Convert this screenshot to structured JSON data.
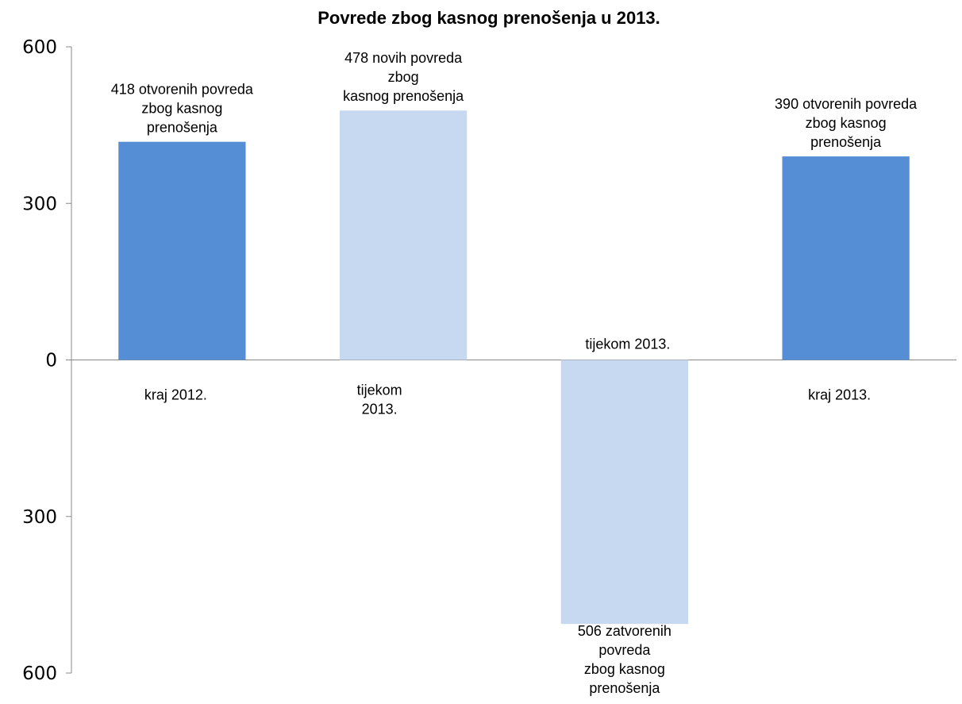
{
  "chart_data": {
    "type": "bar",
    "title": "Povrede zbog kasnog prenošenja u 2013.",
    "xlabel": "",
    "ylabel": "",
    "ylim": [
      -600,
      600
    ],
    "grid": false,
    "legend": "none",
    "y_ticks": [
      {
        "value": 600,
        "label": "600"
      },
      {
        "value": 300,
        "label": "300"
      },
      {
        "value": 0,
        "label": "0"
      },
      {
        "value": -300,
        "label": "300"
      },
      {
        "value": -600,
        "label": "600"
      }
    ],
    "categories": [
      {
        "label_lines": [
          "kraj 2012."
        ],
        "value": 418,
        "color": "#558ED5",
        "data_label_lines": [
          "418 otvorenih povreda",
          "zbog kasnog",
          "prenošenja"
        ]
      },
      {
        "label_lines": [
          "tijekom",
          "2013."
        ],
        "value": 478,
        "color": "#C6D9F1",
        "data_label_lines": [
          "478 novih povreda",
          "zbog",
          "kasnog prenošenja"
        ]
      },
      {
        "label_lines": [
          "tijekom 2013."
        ],
        "value": -506,
        "color": "#C6D9F1",
        "data_label_lines": [
          "506 zatvorenih",
          "povreda",
          "zbog kasnog",
          "prenošenja"
        ]
      },
      {
        "label_lines": [
          "kraj 2013."
        ],
        "value": 390,
        "color": "#558ED5",
        "data_label_lines": [
          "390 otvorenih povreda",
          "zbog kasnog",
          "prenošenja"
        ]
      }
    ]
  }
}
